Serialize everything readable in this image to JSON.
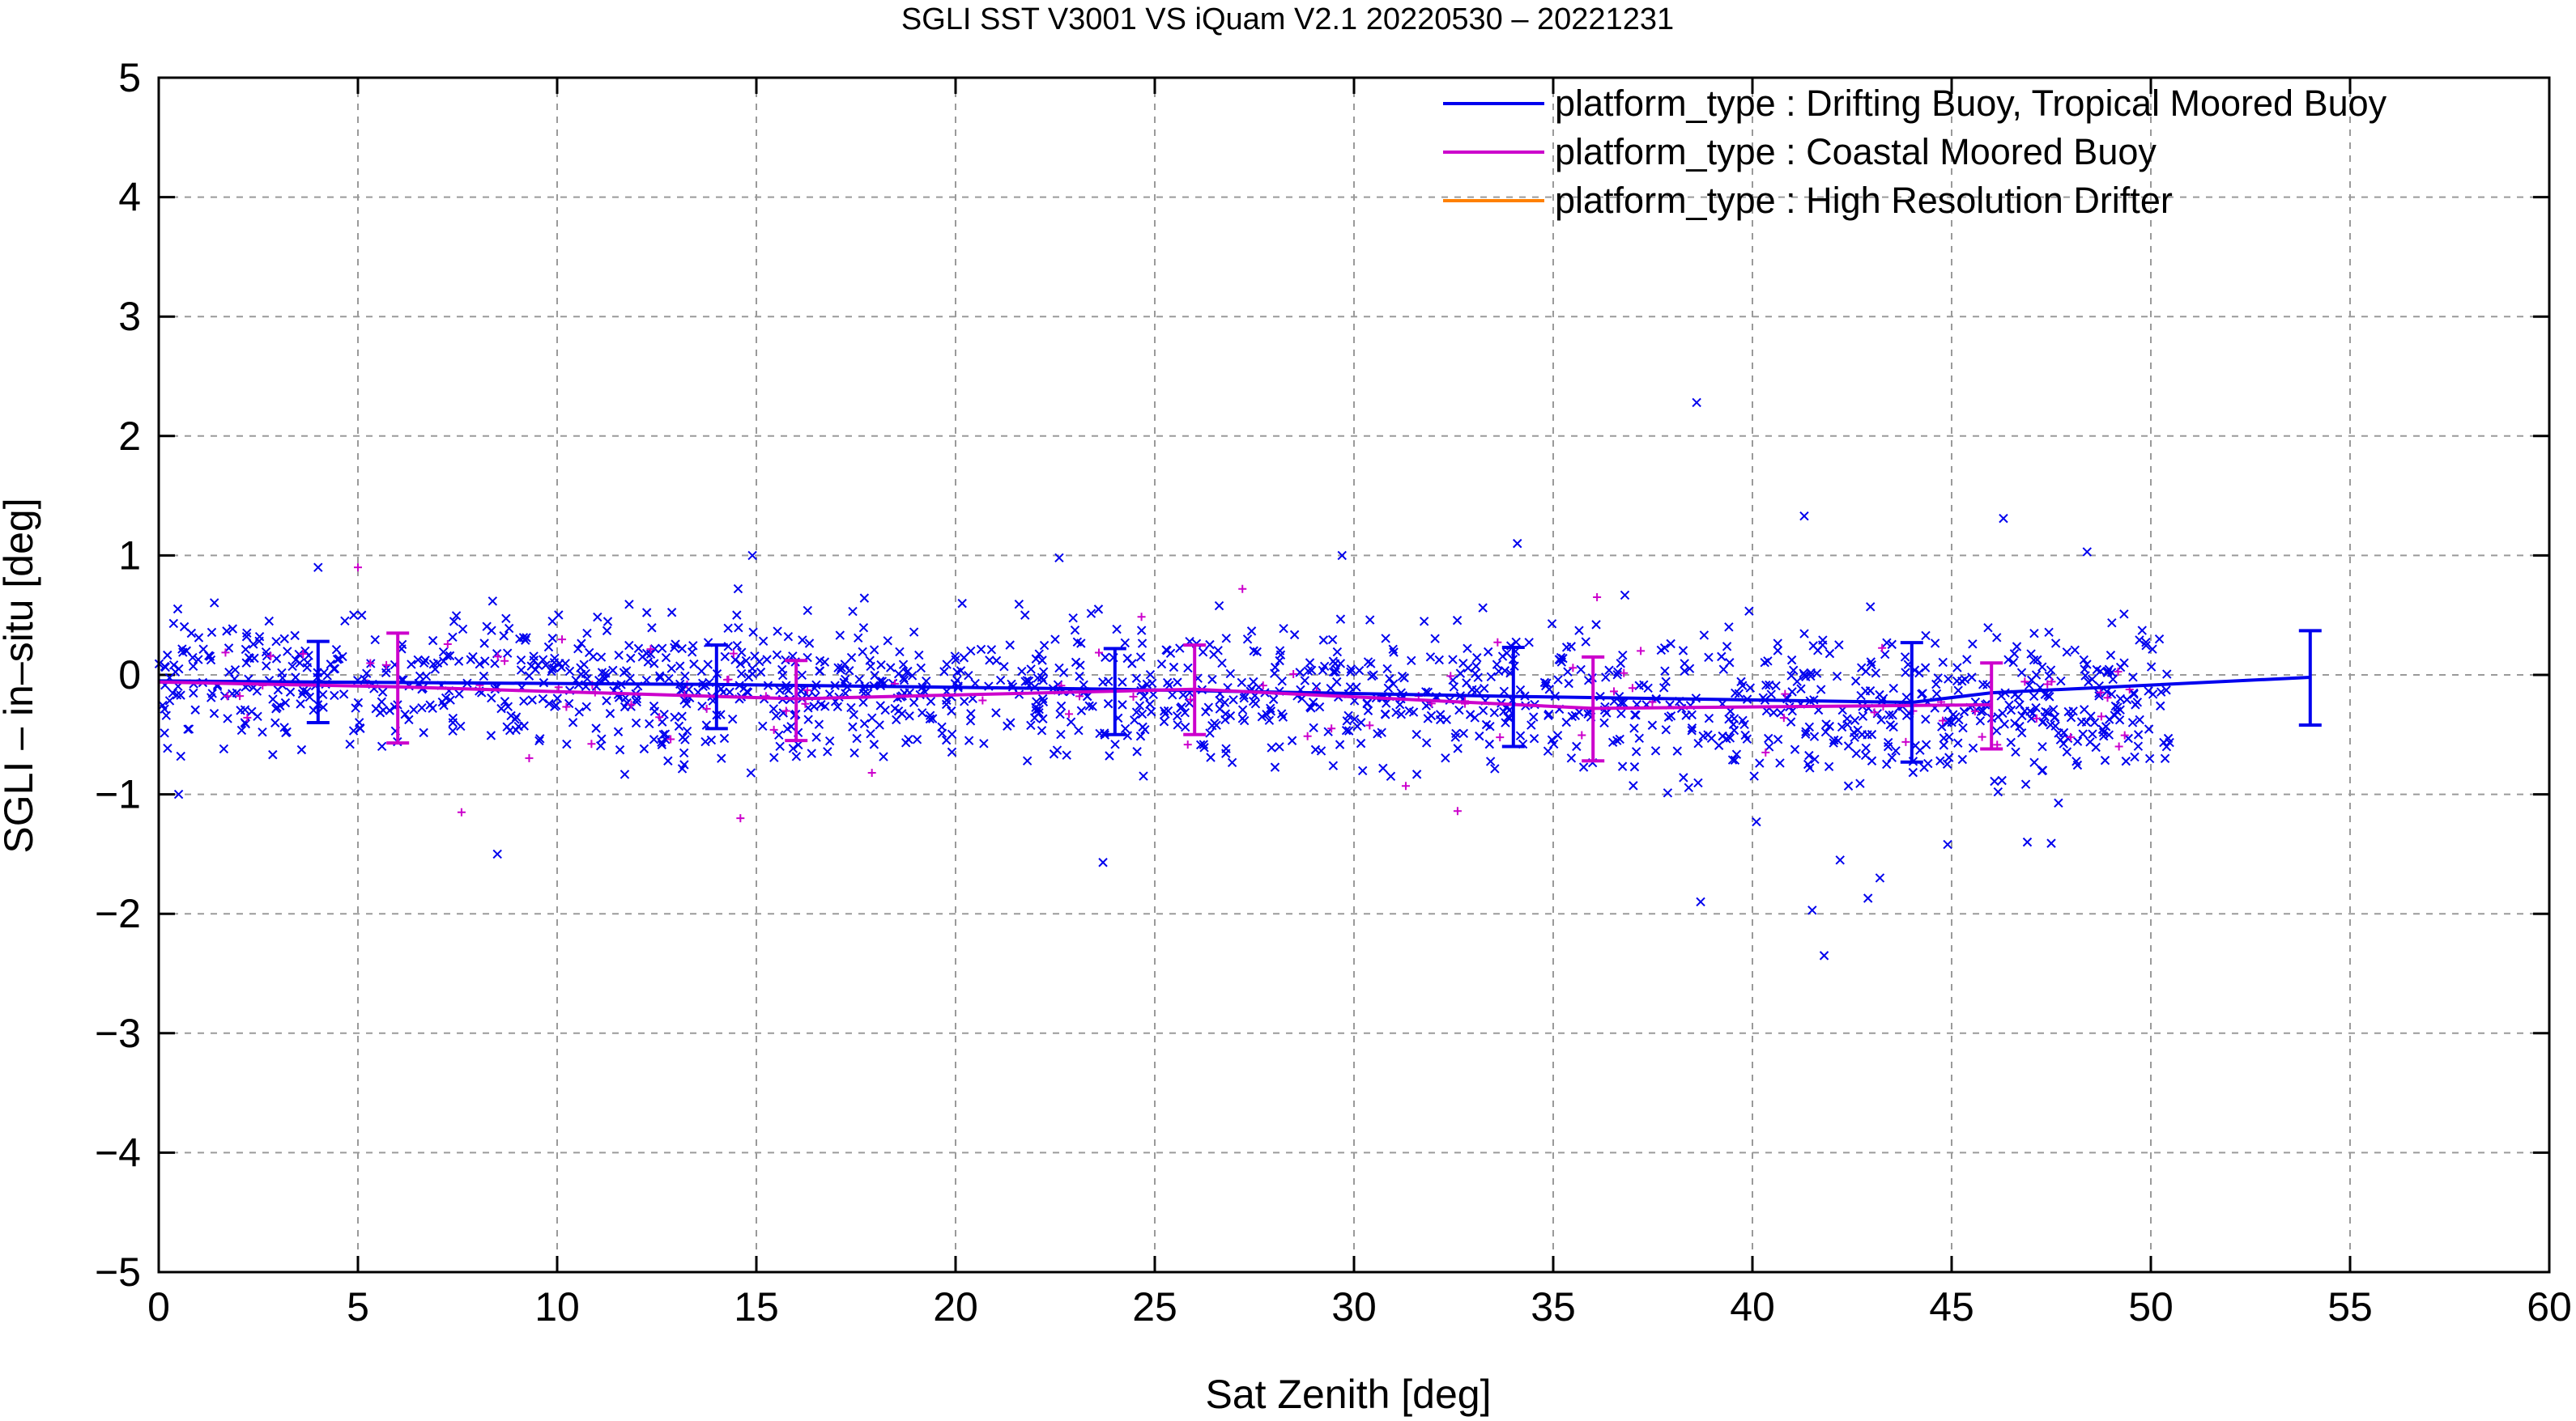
{
  "chart_data": {
    "type": "scatter",
    "title": "SGLI SST V3001 VS iQuam V2.1 20220530 – 20221231",
    "xlabel": "Sat Zenith [deg]",
    "ylabel": "SGLI – in–situ [deg]",
    "xlim": [
      0,
      60
    ],
    "ylim": [
      -5,
      5
    ],
    "xticks": [
      0,
      5,
      10,
      15,
      20,
      25,
      30,
      35,
      40,
      45,
      50,
      55,
      60
    ],
    "yticks": [
      -5,
      -4,
      -3,
      -2,
      -1,
      0,
      1,
      2,
      3,
      4,
      5
    ],
    "xtick_labels": [
      "0",
      "5",
      "10",
      "15",
      "20",
      "25",
      "30",
      "35",
      "40",
      "45",
      "50",
      "55",
      "60"
    ],
    "ytick_labels": [
      "−5",
      "−4",
      "−3",
      "−2",
      "−1",
      "0",
      "1",
      "2",
      "3",
      "4",
      "5"
    ],
    "grid": true,
    "legend_position": "top-right",
    "series": [
      {
        "name": "platform_type : Drifting Buoy, Tropical Moored Buoy",
        "color": "#0000ee",
        "marker": "x",
        "mean_line": {
          "x": [
            0,
            4,
            14,
            24,
            34,
            44,
            46,
            54
          ],
          "y": [
            -0.05,
            -0.06,
            -0.08,
            -0.12,
            -0.18,
            -0.23,
            -0.15,
            -0.02
          ]
        },
        "error_bars": [
          {
            "x": 4,
            "y": -0.06,
            "low": -0.4,
            "high": 0.28
          },
          {
            "x": 14,
            "y": -0.08,
            "low": -0.45,
            "high": 0.25
          },
          {
            "x": 24,
            "y": -0.12,
            "low": -0.5,
            "high": 0.22
          },
          {
            "x": 34,
            "y": -0.18,
            "low": -0.6,
            "high": 0.23
          },
          {
            "x": 44,
            "y": -0.23,
            "low": -0.73,
            "high": 0.27
          },
          {
            "x": 54,
            "y": -0.02,
            "low": -0.42,
            "high": 0.37
          }
        ],
        "outliers": [
          {
            "x": 38.6,
            "y": 2.28
          },
          {
            "x": 41.3,
            "y": 1.33
          },
          {
            "x": 46.3,
            "y": 1.31
          },
          {
            "x": 48.4,
            "y": 1.03
          },
          {
            "x": 34.1,
            "y": 1.1
          },
          {
            "x": 8.5,
            "y": -1.5
          },
          {
            "x": 23.7,
            "y": -1.57
          },
          {
            "x": 38.7,
            "y": -1.9
          },
          {
            "x": 41.5,
            "y": -1.97
          },
          {
            "x": 41.8,
            "y": -2.35
          },
          {
            "x": 42.9,
            "y": -1.87
          },
          {
            "x": 33.4,
            "y": -0.58
          },
          {
            "x": 14.9,
            "y": 1.0
          },
          {
            "x": 22.6,
            "y": 0.98
          },
          {
            "x": 29.7,
            "y": 1.0
          },
          {
            "x": 4.0,
            "y": 0.9
          },
          {
            "x": 0.5,
            "y": -1.0
          },
          {
            "x": 42.2,
            "y": -1.55
          },
          {
            "x": 46.9,
            "y": -1.4
          },
          {
            "x": 47.5,
            "y": -1.41
          },
          {
            "x": 44.9,
            "y": -1.42
          },
          {
            "x": 40.1,
            "y": -1.23
          },
          {
            "x": 43.2,
            "y": -1.7
          }
        ],
        "cloud": {
          "x_range": [
            0,
            50.5
          ],
          "center_start": -0.05,
          "center_end": -0.25,
          "spread": 0.38,
          "count": 1500
        }
      },
      {
        "name": "platform_type : Coastal Moored Buoy",
        "color": "#cc00cc",
        "marker": "+",
        "mean_line": {
          "x": [
            0,
            6,
            16,
            26,
            36,
            46
          ],
          "y": [
            -0.06,
            -0.1,
            -0.2,
            -0.12,
            -0.28,
            -0.25
          ]
        },
        "error_bars": [
          {
            "x": 6,
            "y": -0.1,
            "low": -0.57,
            "high": 0.35
          },
          {
            "x": 16,
            "y": -0.2,
            "low": -0.55,
            "high": 0.12
          },
          {
            "x": 26,
            "y": -0.12,
            "low": -0.5,
            "high": 0.25
          },
          {
            "x": 36,
            "y": -0.28,
            "low": -0.72,
            "high": 0.15
          },
          {
            "x": 46,
            "y": -0.25,
            "low": -0.62,
            "high": 0.1
          }
        ],
        "outliers": [
          {
            "x": 5.0,
            "y": 0.9
          },
          {
            "x": 7.6,
            "y": -1.15
          },
          {
            "x": 14.6,
            "y": -1.2
          },
          {
            "x": 27.2,
            "y": 0.72
          },
          {
            "x": 32.6,
            "y": -1.14
          },
          {
            "x": 36.1,
            "y": 0.65
          },
          {
            "x": 49.2,
            "y": -0.6
          },
          {
            "x": 17.9,
            "y": -0.82
          },
          {
            "x": 31.3,
            "y": -0.93
          }
        ],
        "cloud": {
          "x_range": [
            0,
            49.5
          ],
          "center_start": -0.1,
          "center_end": -0.25,
          "spread": 0.3,
          "count": 90
        }
      },
      {
        "name": "platform_type : High Resolution Drifter",
        "color": "#ff8000",
        "marker": "x"
      }
    ]
  }
}
